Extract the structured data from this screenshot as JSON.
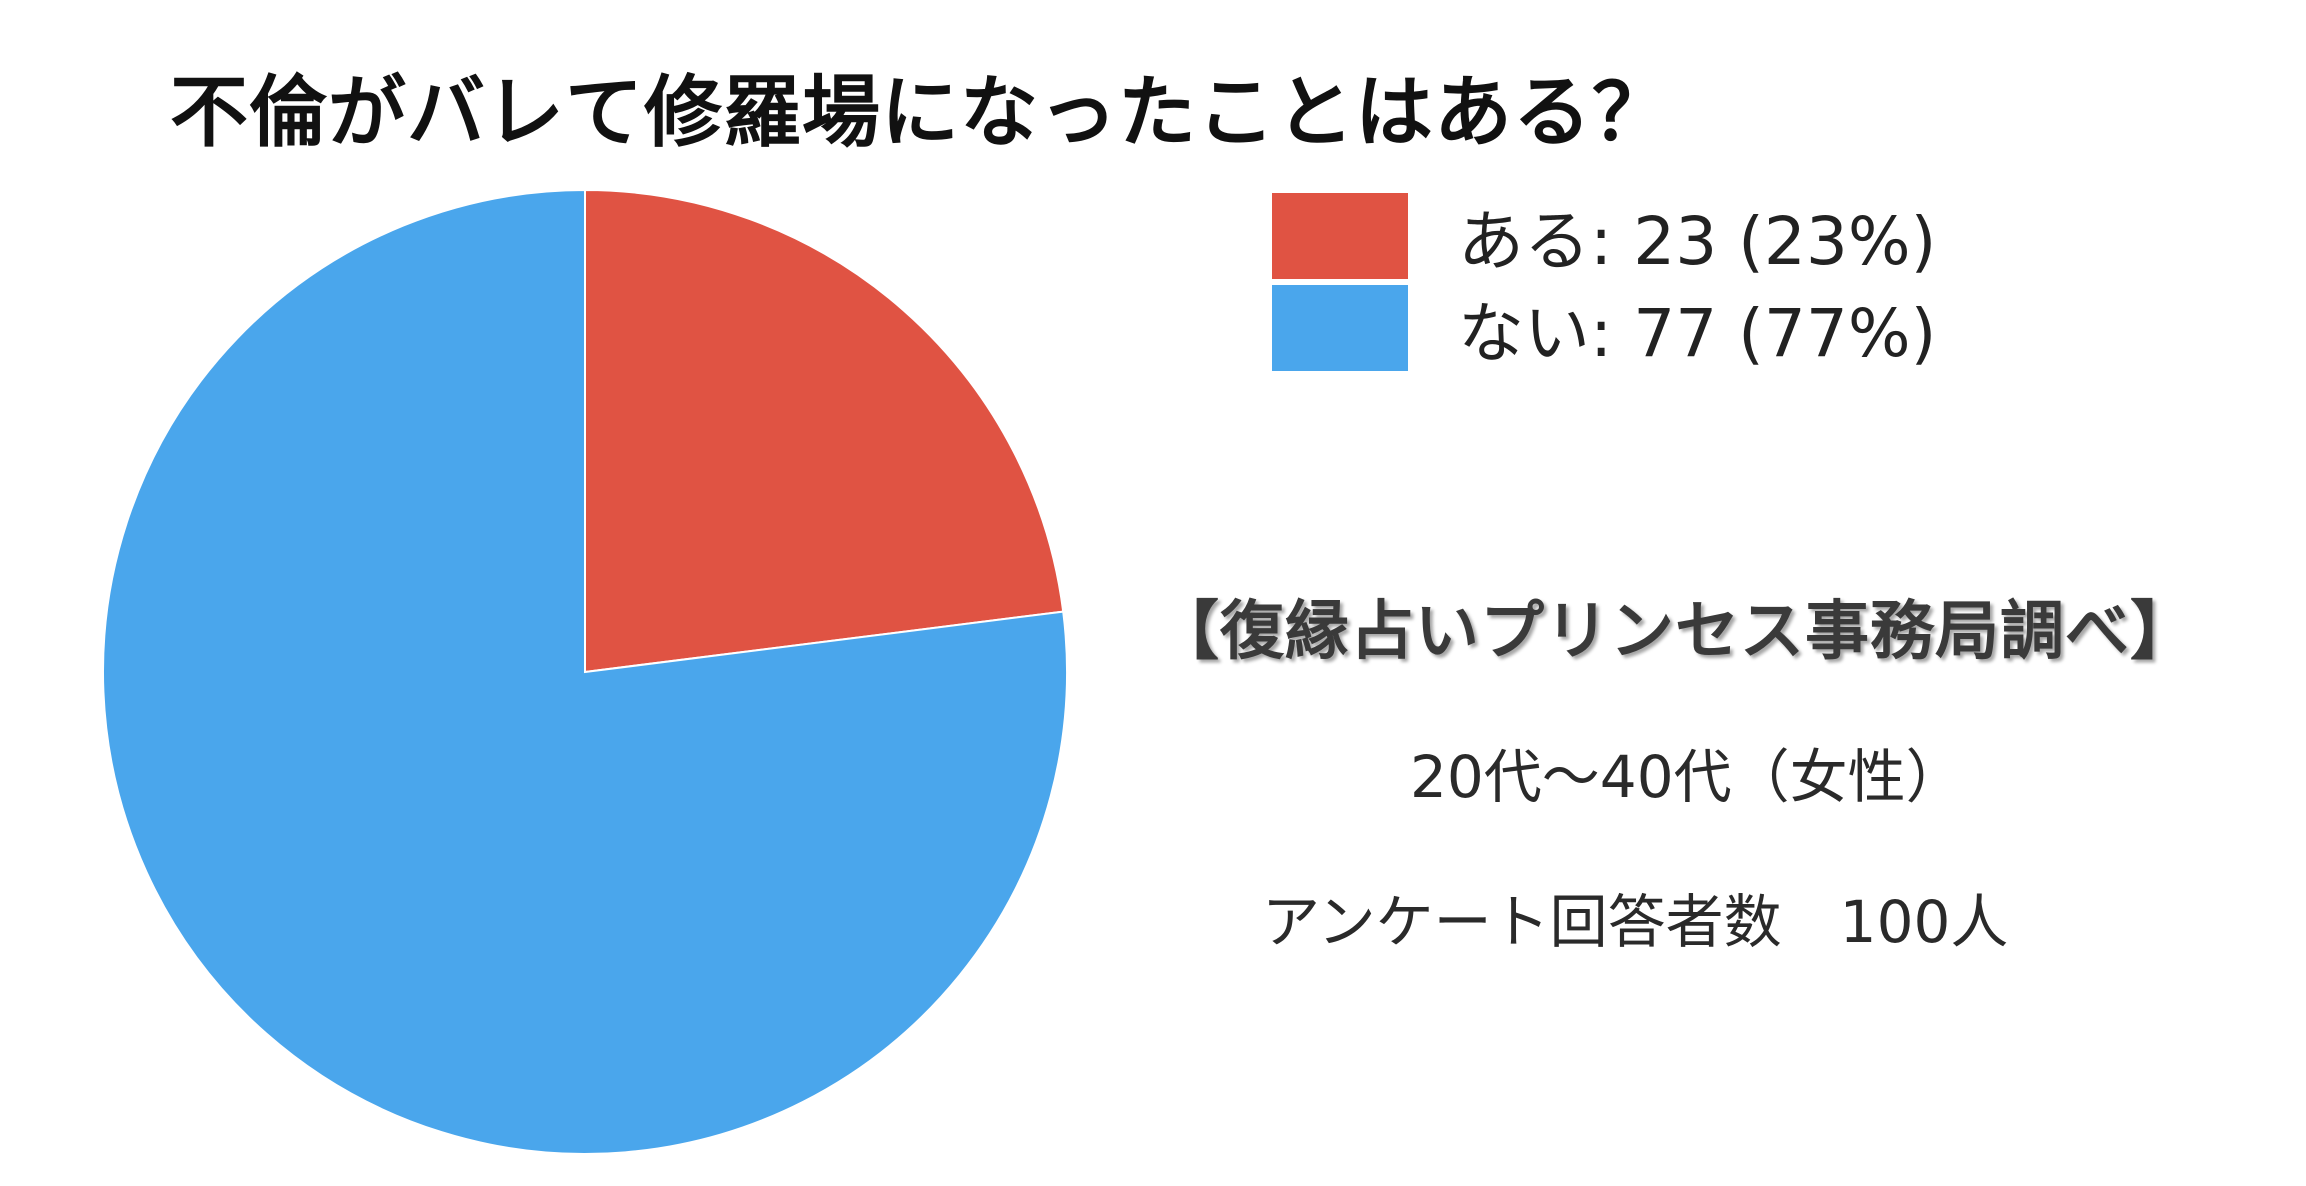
{
  "title": "不倫がバレて修羅場になったことはある？",
  "source": "【復縁占いプリンセス事務局調べ】",
  "demographic": "20代〜40代（女性）",
  "respondents": "アンケート回答者数　100人",
  "legend": [
    {
      "text": "ある: 23 (23%)",
      "color": "#e05343"
    },
    {
      "text": "ない: 77 (77%)",
      "color": "#4aa6ec"
    }
  ],
  "chart_data": {
    "type": "pie",
    "title": "不倫がバレて修羅場になったことはある？",
    "series": [
      {
        "name": "ある",
        "value": 23,
        "percent": 23,
        "color": "#e05343"
      },
      {
        "name": "ない",
        "value": 77,
        "percent": 77,
        "color": "#4aa6ec"
      }
    ],
    "total": 100,
    "start_angle": "12 o'clock",
    "direction": "clockwise",
    "legend_position": "right"
  }
}
